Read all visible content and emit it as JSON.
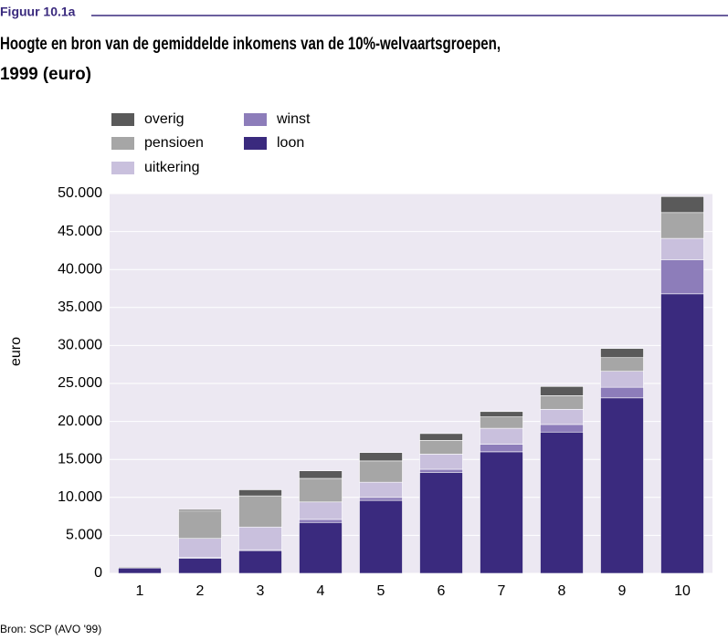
{
  "chart_data": {
    "type": "stacked_bar",
    "figure_label": "Figuur 10.1a",
    "title": [
      "Hoogte en bron van de gemiddelde inkomens van de 10%-welvaartsgroepen,",
      "1999 (euro)"
    ],
    "ylabel": "euro",
    "source": "Bron: SCP (AVO '99)",
    "categories": [
      "1",
      "2",
      "3",
      "4",
      "5",
      "6",
      "7",
      "8",
      "9",
      "10"
    ],
    "series": [
      {
        "name": "loon",
        "color": "#3a2a7e",
        "values": [
          700,
          2000,
          3000,
          6700,
          9600,
          13300,
          16000,
          18600,
          23100,
          36800
        ]
      },
      {
        "name": "winst",
        "color": "#8d7dba",
        "values": [
          0,
          100,
          100,
          400,
          400,
          400,
          1000,
          1000,
          1400,
          4500
        ]
      },
      {
        "name": "uitkering",
        "color": "#c9c0dd",
        "values": [
          0,
          2500,
          3000,
          2300,
          2000,
          2000,
          2100,
          2000,
          2100,
          2800
        ]
      },
      {
        "name": "pensioen",
        "color": "#a6a6a6",
        "values": [
          0,
          3600,
          4100,
          3100,
          2800,
          1800,
          1500,
          1800,
          1800,
          3400
        ]
      },
      {
        "name": "overig",
        "color": "#5a5a5a",
        "values": [
          100,
          200,
          800,
          1000,
          1100,
          900,
          700,
          1200,
          1200,
          2100
        ]
      }
    ],
    "ylim": [
      0,
      50000
    ],
    "yticks": [
      0,
      {
        "value": 5000,
        "label": "5.000"
      },
      {
        "value": 10000,
        "label": "10.000"
      },
      {
        "value": 15000,
        "label": "15.000"
      },
      {
        "value": 20000,
        "label": "20.000"
      },
      {
        "value": 25000,
        "label": "25.000"
      },
      {
        "value": 30000,
        "label": "30.000"
      },
      {
        "value": 35000,
        "label": "35.000"
      },
      {
        "value": 40000,
        "label": "40.000"
      },
      {
        "value": 45000,
        "label": "45.000"
      },
      {
        "value": 50000,
        "label": "50.000"
      }
    ],
    "grid": true,
    "plot_background": "#ece8f2"
  }
}
